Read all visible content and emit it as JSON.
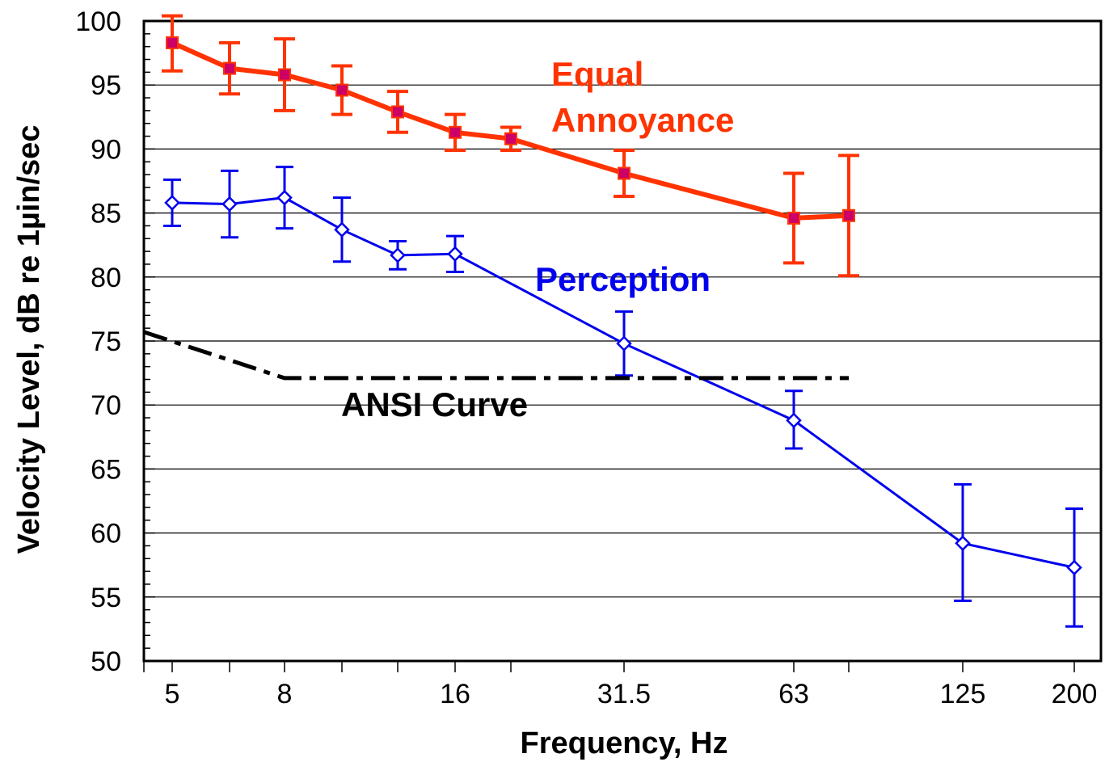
{
  "chart_data": {
    "type": "line",
    "xlabel": "Frequency, Hz",
    "ylabel": "Velocity Level, dB re 1µin/sec",
    "ylim": [
      50,
      100
    ],
    "yticks": [
      "50",
      "55",
      "60",
      "65",
      "70",
      "75",
      "80",
      "85",
      "90",
      "95",
      "100"
    ],
    "xticks": [
      "5",
      "8",
      "16",
      "31.5",
      "63",
      "125",
      "200"
    ],
    "x_scale": "one-third-octave bands",
    "grid": "horizontal",
    "series": [
      {
        "name": "Equal Annoyance",
        "color": "#ff3300",
        "marker": "square",
        "marker_color": "#cc0066",
        "points": [
          {
            "x": 5,
            "y": 98.3,
            "err_low": 96.1,
            "err_high": 100.4
          },
          {
            "x": 6.3,
            "y": 96.3,
            "err_low": 94.3,
            "err_high": 98.3
          },
          {
            "x": 8,
            "y": 95.8,
            "err_low": 93.0,
            "err_high": 98.6
          },
          {
            "x": 10,
            "y": 94.6,
            "err_low": 92.7,
            "err_high": 96.5
          },
          {
            "x": 12.5,
            "y": 92.9,
            "err_low": 91.3,
            "err_high": 94.5
          },
          {
            "x": 16,
            "y": 91.3,
            "err_low": 89.9,
            "err_high": 92.7
          },
          {
            "x": 20,
            "y": 90.8,
            "err_low": 89.9,
            "err_high": 91.7
          },
          {
            "x": 31.5,
            "y": 88.1,
            "err_low": 86.3,
            "err_high": 89.9
          },
          {
            "x": 63,
            "y": 84.6,
            "err_low": 81.1,
            "err_high": 88.1
          },
          {
            "x": 80,
            "y": 84.8,
            "err_low": 80.1,
            "err_high": 89.5
          }
        ]
      },
      {
        "name": "Perception",
        "color": "#0000ee",
        "marker": "diamond",
        "points": [
          {
            "x": 5,
            "y": 85.8,
            "err_low": 84.0,
            "err_high": 87.6
          },
          {
            "x": 6.3,
            "y": 85.7,
            "err_low": 83.1,
            "err_high": 88.3
          },
          {
            "x": 8,
            "y": 86.2,
            "err_low": 83.8,
            "err_high": 88.6
          },
          {
            "x": 10,
            "y": 83.7,
            "err_low": 81.2,
            "err_high": 86.2
          },
          {
            "x": 12.5,
            "y": 81.7,
            "err_low": 80.6,
            "err_high": 82.8
          },
          {
            "x": 16,
            "y": 81.8,
            "err_low": 80.4,
            "err_high": 83.2
          },
          {
            "x": 31.5,
            "y": 74.8,
            "err_low": 72.3,
            "err_high": 77.3
          },
          {
            "x": 63,
            "y": 68.8,
            "err_low": 66.6,
            "err_high": 71.1
          },
          {
            "x": 125,
            "y": 59.2,
            "err_low": 54.7,
            "err_high": 63.8
          },
          {
            "x": 200,
            "y": 57.3,
            "err_low": 52.7,
            "err_high": 61.9
          }
        ]
      },
      {
        "name": "ANSI Curve",
        "color": "#000000",
        "style": "dash-dot",
        "points": [
          {
            "x": 4,
            "y": 75.7
          },
          {
            "x": 8,
            "y": 72.1
          },
          {
            "x": 80,
            "y": 72.1
          }
        ]
      }
    ]
  }
}
